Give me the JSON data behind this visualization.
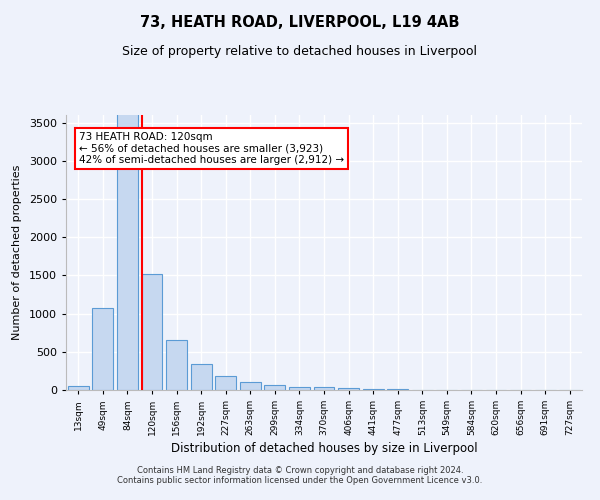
{
  "title": "73, HEATH ROAD, LIVERPOOL, L19 4AB",
  "subtitle": "Size of property relative to detached houses in Liverpool",
  "xlabel": "Distribution of detached houses by size in Liverpool",
  "ylabel": "Number of detached properties",
  "footer_line1": "Contains HM Land Registry data © Crown copyright and database right 2024.",
  "footer_line2": "Contains public sector information licensed under the Open Government Licence v3.0.",
  "annotation_line1": "73 HEATH ROAD: 120sqm",
  "annotation_line2": "← 56% of detached houses are smaller (3,923)",
  "annotation_line3": "42% of semi-detached houses are larger (2,912) →",
  "bar_labels": [
    "13sqm",
    "49sqm",
    "84sqm",
    "120sqm",
    "156sqm",
    "192sqm",
    "227sqm",
    "263sqm",
    "299sqm",
    "334sqm",
    "370sqm",
    "406sqm",
    "441sqm",
    "477sqm",
    "513sqm",
    "549sqm",
    "584sqm",
    "620sqm",
    "656sqm",
    "691sqm",
    "727sqm"
  ],
  "bar_values": [
    50,
    1080,
    3900,
    1520,
    650,
    340,
    185,
    105,
    65,
    45,
    35,
    20,
    15,
    8,
    5,
    3,
    2,
    1,
    0,
    0,
    0
  ],
  "bar_color": "#c6d8f0",
  "bar_edge_color": "#5b9bd5",
  "ylim": [
    0,
    3600
  ],
  "yticks": [
    0,
    500,
    1000,
    1500,
    2000,
    2500,
    3000,
    3500
  ],
  "background_color": "#eef2fb",
  "grid_color": "#ffffff",
  "red_line_bar_index": 3
}
